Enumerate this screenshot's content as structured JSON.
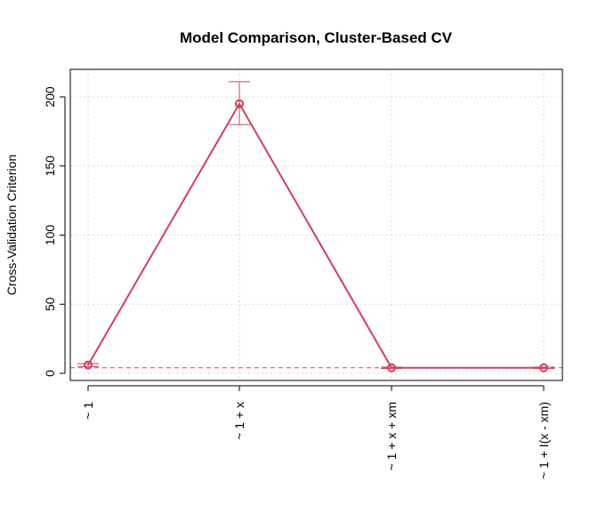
{
  "chart_data": {
    "type": "line",
    "title": "Model Comparison, Cluster-Based CV",
    "xlabel": "",
    "ylabel": "Cross-Validation Criterion",
    "categories": [
      "~ 1",
      "~ 1 + x",
      "~ 1 + x + xm",
      "~ 1 + I(x - xm)"
    ],
    "series": [
      {
        "values": [
          6,
          195,
          4,
          4
        ],
        "err_low": [
          5,
          180,
          3.5,
          3.5
        ],
        "err_high": [
          7,
          211,
          4.5,
          4.5
        ]
      }
    ],
    "reference_line": 4,
    "ylim": [
      0,
      220
    ],
    "yticks": [
      0,
      50,
      100,
      150,
      200
    ],
    "grid": true,
    "color": "#d0405e",
    "grid_color": "#d9d9d9"
  }
}
